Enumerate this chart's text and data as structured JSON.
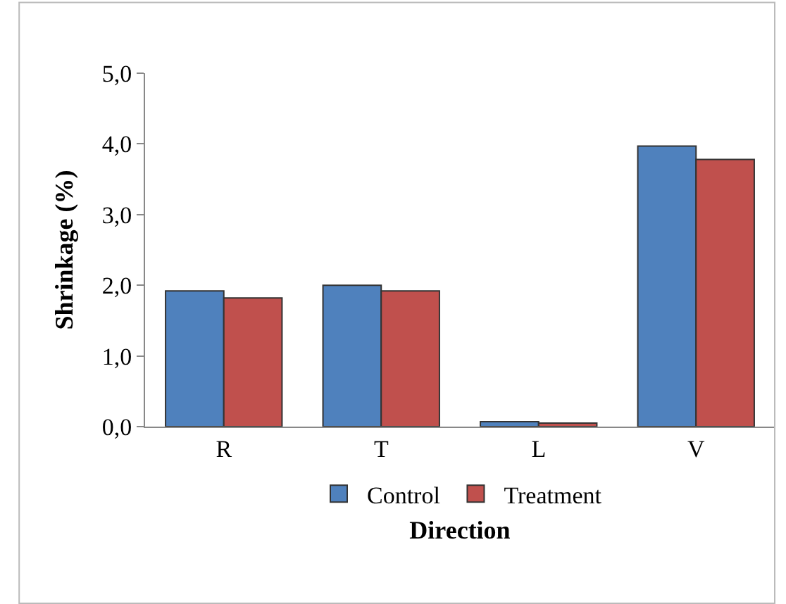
{
  "chart_data": {
    "type": "bar",
    "xlabel": "Direction",
    "ylabel": "Shrinkage (%)",
    "categories": [
      "R",
      "T",
      "L",
      "V"
    ],
    "series": [
      {
        "name": "Control",
        "color": "#4f81bd",
        "values": [
          1.92,
          2.0,
          0.07,
          3.97
        ]
      },
      {
        "name": "Treatment",
        "color": "#c0504d",
        "values": [
          1.82,
          1.92,
          0.05,
          3.78
        ]
      }
    ],
    "ylim": [
      0,
      5
    ],
    "yticks": [
      {
        "value": 0,
        "label": "0,0"
      },
      {
        "value": 1,
        "label": "1,0"
      },
      {
        "value": 2,
        "label": "2,0"
      },
      {
        "value": 3,
        "label": "3,0"
      },
      {
        "value": 4,
        "label": "4,0"
      },
      {
        "value": 5,
        "label": "5,0"
      }
    ],
    "legend": "bottom"
  }
}
